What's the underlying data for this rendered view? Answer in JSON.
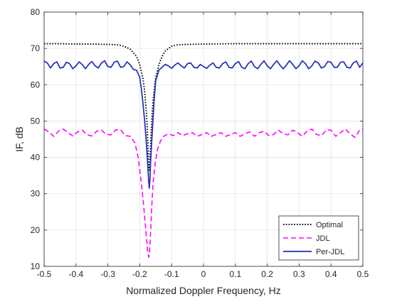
{
  "chart_data": {
    "type": "line",
    "title": "",
    "xlabel": "Normalized Doppler Frequency, Hz",
    "ylabel": "IF, dB",
    "xlim": [
      -0.5,
      0.5
    ],
    "ylim": [
      10,
      80
    ],
    "xticks": [
      -0.5,
      -0.4,
      -0.3,
      -0.2,
      -0.1,
      0,
      0.1,
      0.2,
      0.3,
      0.4,
      0.5
    ],
    "xtick_labels": [
      "-0.5",
      "-0.4",
      "-0.3",
      "-0.2",
      "-0.1",
      "0",
      "0.1",
      "0.2",
      "0.3",
      "0.4",
      "0.5"
    ],
    "yticks": [
      10,
      20,
      30,
      40,
      50,
      60,
      70,
      80
    ],
    "ytick_labels": [
      "10",
      "20",
      "30",
      "40",
      "50",
      "60",
      "70",
      "80"
    ],
    "grid": true,
    "legend_position": "bottom-right",
    "notch_frequency": -0.17,
    "series": [
      {
        "name": "Optimal",
        "color": "#000000",
        "style": "dotted",
        "x": [
          -0.5,
          -0.45,
          -0.4,
          -0.35,
          -0.3,
          -0.27,
          -0.25,
          -0.23,
          -0.21,
          -0.2,
          -0.19,
          -0.185,
          -0.18,
          -0.177,
          -0.174,
          -0.172,
          -0.17,
          -0.168,
          -0.166,
          -0.163,
          -0.16,
          -0.155,
          -0.15,
          -0.14,
          -0.13,
          -0.12,
          -0.1,
          -0.08,
          -0.05,
          0,
          0.1,
          0.2,
          0.3,
          0.4,
          0.5
        ],
        "y": [
          71.3,
          71.3,
          71.2,
          71.2,
          71.1,
          71.0,
          70.6,
          69.8,
          67.8,
          65.5,
          61.8,
          58.5,
          53.5,
          49.0,
          43.0,
          38.5,
          36.5,
          38.5,
          43.0,
          49.0,
          53.5,
          58.5,
          61.8,
          65.5,
          67.8,
          69.3,
          70.6,
          71.0,
          71.1,
          71.2,
          71.3,
          71.3,
          71.3,
          71.3,
          71.3
        ]
      },
      {
        "name": "JDL",
        "color": "#ff00ff",
        "style": "dashed",
        "x": [
          -0.5,
          -0.485,
          -0.47,
          -0.455,
          -0.44,
          -0.425,
          -0.41,
          -0.395,
          -0.38,
          -0.365,
          -0.35,
          -0.335,
          -0.32,
          -0.305,
          -0.29,
          -0.275,
          -0.26,
          -0.245,
          -0.23,
          -0.215,
          -0.205,
          -0.195,
          -0.188,
          -0.182,
          -0.178,
          -0.175,
          -0.172,
          -0.17,
          -0.168,
          -0.165,
          -0.162,
          -0.158,
          -0.152,
          -0.145,
          -0.135,
          -0.125,
          -0.11,
          -0.095,
          -0.08,
          -0.065,
          -0.05,
          -0.035,
          -0.02,
          -0.005,
          0.01,
          0.025,
          0.04,
          0.055,
          0.07,
          0.085,
          0.1,
          0.115,
          0.13,
          0.145,
          0.16,
          0.175,
          0.19,
          0.205,
          0.22,
          0.235,
          0.25,
          0.265,
          0.28,
          0.295,
          0.31,
          0.325,
          0.34,
          0.355,
          0.37,
          0.385,
          0.4,
          0.415,
          0.43,
          0.445,
          0.46,
          0.475,
          0.49,
          0.5
        ],
        "y": [
          47.8,
          47.0,
          45.8,
          47.2,
          47.8,
          46.8,
          45.9,
          47.0,
          47.5,
          46.2,
          45.9,
          47.2,
          47.5,
          46.3,
          46.2,
          47.6,
          47.6,
          46.0,
          45.8,
          44.0,
          40.0,
          33.0,
          27.0,
          21.0,
          17.0,
          14.0,
          12.5,
          13.0,
          16.0,
          21.0,
          27.0,
          33.0,
          38.0,
          42.0,
          44.5,
          45.8,
          46.5,
          46.0,
          46.8,
          46.0,
          46.5,
          46.8,
          45.8,
          46.3,
          46.8,
          45.8,
          46.3,
          46.8,
          45.8,
          46.3,
          46.8,
          45.8,
          46.5,
          47.0,
          45.8,
          46.8,
          47.2,
          46.0,
          46.3,
          47.5,
          46.5,
          46.2,
          47.5,
          46.8,
          45.8,
          47.2,
          47.8,
          46.3,
          46.0,
          47.5,
          47.5,
          45.8,
          46.8,
          47.8,
          46.5,
          45.5,
          47.5,
          47.8
        ]
      },
      {
        "name": "Per-JDL",
        "color": "#1f2db8",
        "style": "solid",
        "x": [
          -0.5,
          -0.49,
          -0.48,
          -0.47,
          -0.46,
          -0.45,
          -0.44,
          -0.43,
          -0.42,
          -0.41,
          -0.4,
          -0.39,
          -0.38,
          -0.37,
          -0.36,
          -0.35,
          -0.34,
          -0.33,
          -0.32,
          -0.31,
          -0.3,
          -0.29,
          -0.28,
          -0.27,
          -0.26,
          -0.25,
          -0.24,
          -0.23,
          -0.22,
          -0.21,
          -0.2,
          -0.195,
          -0.19,
          -0.185,
          -0.18,
          -0.177,
          -0.174,
          -0.172,
          -0.17,
          -0.168,
          -0.166,
          -0.163,
          -0.16,
          -0.155,
          -0.15,
          -0.14,
          -0.13,
          -0.12,
          -0.11,
          -0.1,
          -0.09,
          -0.08,
          -0.07,
          -0.06,
          -0.05,
          -0.04,
          -0.03,
          -0.02,
          -0.01,
          0,
          0.01,
          0.02,
          0.03,
          0.04,
          0.05,
          0.06,
          0.07,
          0.08,
          0.09,
          0.1,
          0.11,
          0.12,
          0.13,
          0.14,
          0.15,
          0.16,
          0.17,
          0.18,
          0.19,
          0.2,
          0.21,
          0.22,
          0.23,
          0.24,
          0.25,
          0.26,
          0.27,
          0.28,
          0.29,
          0.3,
          0.31,
          0.32,
          0.33,
          0.34,
          0.35,
          0.36,
          0.37,
          0.38,
          0.39,
          0.4,
          0.41,
          0.42,
          0.43,
          0.44,
          0.45,
          0.46,
          0.47,
          0.48,
          0.49,
          0.5
        ],
        "y": [
          66.5,
          66.0,
          64.6,
          65.8,
          66.3,
          64.6,
          64.8,
          66.2,
          65.8,
          64.4,
          65.2,
          66.3,
          65.5,
          64.4,
          65.6,
          66.4,
          65.2,
          64.6,
          66.0,
          66.6,
          65.0,
          64.8,
          66.2,
          66.5,
          64.8,
          65.0,
          66.3,
          65.5,
          64.2,
          64.0,
          62.0,
          59.0,
          55.0,
          50.5,
          45.0,
          41.0,
          36.5,
          33.5,
          31.5,
          34.0,
          38.5,
          43.5,
          48.0,
          55.5,
          61.0,
          64.0,
          64.8,
          65.6,
          65.2,
          64.5,
          65.4,
          66.0,
          65.2,
          64.6,
          65.8,
          66.0,
          64.8,
          64.6,
          65.6,
          65.0,
          64.5,
          65.4,
          66.0,
          64.8,
          64.6,
          65.8,
          66.3,
          64.8,
          64.6,
          65.8,
          66.4,
          64.8,
          64.4,
          65.8,
          66.5,
          65.0,
          64.4,
          65.6,
          66.6,
          65.2,
          64.4,
          65.6,
          66.6,
          65.4,
          64.4,
          65.4,
          66.6,
          65.6,
          64.4,
          65.2,
          66.6,
          65.8,
          64.4,
          65.2,
          66.5,
          66.0,
          64.6,
          65.0,
          66.4,
          66.2,
          64.8,
          64.8,
          66.2,
          66.3,
          64.8,
          64.6,
          66.0,
          66.5,
          64.8,
          66.0
        ]
      }
    ]
  }
}
